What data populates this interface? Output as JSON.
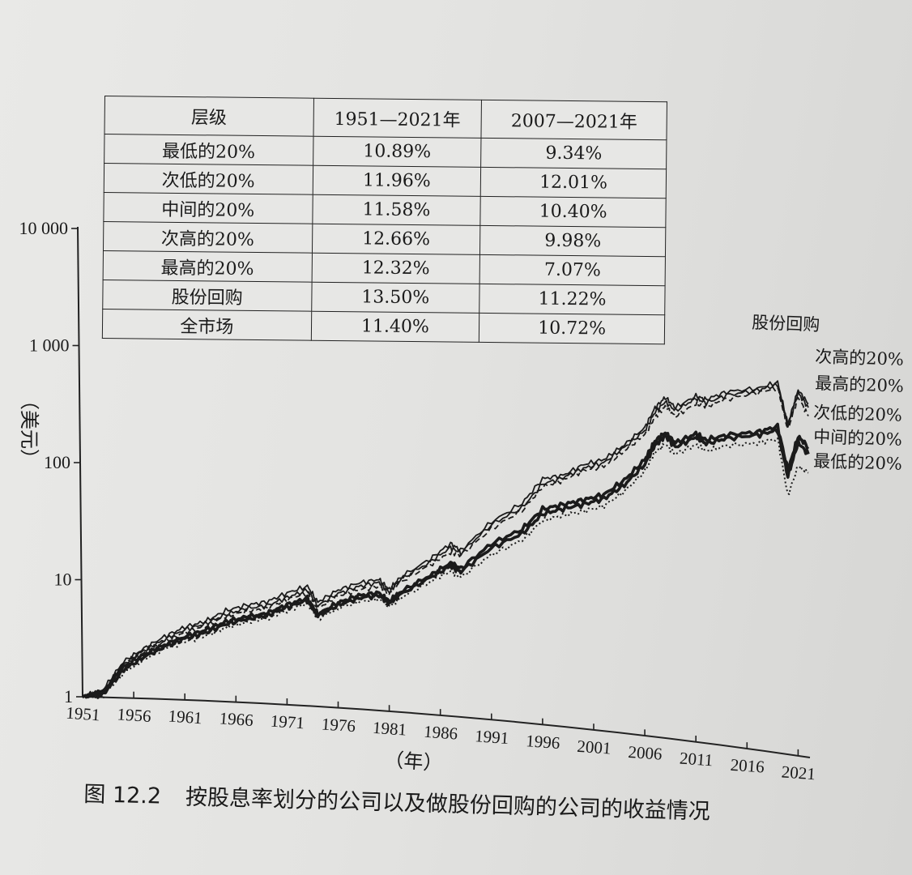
{
  "table": {
    "headers": [
      "层级",
      "1951—2021年",
      "2007—2021年"
    ],
    "rows": [
      [
        "最低的20%",
        "10.89%",
        "9.34%"
      ],
      [
        "次低的20%",
        "11.96%",
        "12.01%"
      ],
      [
        "中间的20%",
        "11.58%",
        "10.40%"
      ],
      [
        "次高的20%",
        "12.66%",
        "9.98%"
      ],
      [
        "最高的20%",
        "12.32%",
        "7.07%"
      ],
      [
        "股份回购",
        "13.50%",
        "11.22%"
      ],
      [
        "全市场",
        "11.40%",
        "10.72%"
      ]
    ]
  },
  "caption": {
    "figure_number": "图 12.2",
    "text": "按股息率划分的公司以及做股份回购的公司的收益情况"
  },
  "chart_data": {
    "type": "line",
    "ylabel": "（美元）",
    "xlabel": "（年）",
    "y_scale": "log",
    "ylim": [
      1,
      10000
    ],
    "xlim": [
      1951,
      2022
    ],
    "y_ticks": [
      1,
      10,
      100,
      1000,
      10000
    ],
    "y_tick_labels": [
      "1",
      "10",
      "100",
      "1 000",
      "10 000"
    ],
    "x_ticks": [
      1951,
      1956,
      1961,
      1966,
      1971,
      1976,
      1981,
      1986,
      1991,
      1996,
      2001,
      2006,
      2011,
      2016,
      2021
    ],
    "x_tick_labels": [
      "1951",
      "1956",
      "1961",
      "1966",
      "1971",
      "1976",
      "1981",
      "1986",
      "1991",
      "1996",
      "2001",
      "2006",
      "2011",
      "2016",
      "2021"
    ],
    "x": [
      1951,
      1953,
      1955,
      1957,
      1959,
      1961,
      1963,
      1965,
      1967,
      1969,
      1971,
      1973,
      1974,
      1976,
      1978,
      1980,
      1981,
      1982,
      1985,
      1987,
      1988,
      1991,
      1994,
      1996,
      1998,
      2000,
      2002,
      2004,
      2006,
      2007,
      2008,
      2009,
      2011,
      2012,
      2014,
      2017,
      2019,
      2020,
      2021,
      2022
    ],
    "series_labels_order": [
      "股份回购",
      "次高的20%",
      "最高的20%",
      "次低的20%",
      "中间的20%",
      "最低的20%"
    ],
    "series": [
      {
        "name": "股份回购",
        "style": "solid-thin",
        "values": [
          1,
          1.15,
          2.0,
          2.6,
          3.3,
          4.0,
          4.5,
          5.6,
          6.3,
          6.8,
          8.2,
          9.5,
          7.0,
          9.0,
          10.5,
          11.5,
          9.5,
          12.0,
          18.0,
          25.0,
          22.0,
          40.0,
          60.0,
          100.0,
          110.0,
          140.0,
          160.0,
          220.0,
          320.0,
          480.0,
          600.0,
          500.0,
          650.0,
          620.0,
          750.0,
          850.0,
          1000.0,
          450.0,
          900.0,
          700.0
        ]
      },
      {
        "name": "次高的20%",
        "style": "solid-thin",
        "values": [
          1,
          1.12,
          1.9,
          2.5,
          3.1,
          3.8,
          4.3,
          5.2,
          5.9,
          6.3,
          7.5,
          8.8,
          6.5,
          8.4,
          9.8,
          10.8,
          9.0,
          11.5,
          17.0,
          23.0,
          21.0,
          38.0,
          55.0,
          90.0,
          105.0,
          130.0,
          150.0,
          210.0,
          300.0,
          440.0,
          550.0,
          470.0,
          620.0,
          580.0,
          700.0,
          820.0,
          950.0,
          430.0,
          850.0,
          650.0
        ]
      },
      {
        "name": "最高的20%",
        "style": "dashed",
        "values": [
          1,
          1.1,
          1.85,
          2.4,
          3.0,
          3.6,
          4.1,
          5.0,
          5.6,
          6.0,
          7.2,
          8.4,
          6.2,
          8.0,
          9.2,
          10.0,
          8.7,
          11.0,
          16.0,
          21.0,
          20.0,
          35.0,
          52.0,
          85.0,
          100.0,
          125.0,
          140.0,
          195.0,
          280.0,
          400.0,
          500.0,
          420.0,
          560.0,
          540.0,
          650.0,
          780.0,
          900.0,
          400.0,
          780.0,
          550.0
        ]
      },
      {
        "name": "次低的20%",
        "style": "bold",
        "values": [
          1,
          1.08,
          1.8,
          2.3,
          2.8,
          3.3,
          3.8,
          4.5,
          5.0,
          5.4,
          6.5,
          7.5,
          5.5,
          7.0,
          8.2,
          8.8,
          7.5,
          9.0,
          13.0,
          17.0,
          15.5,
          26.0,
          36.0,
          55.0,
          62.0,
          70.0,
          80.0,
          110.0,
          170.0,
          250.0,
          300.0,
          250.0,
          310.0,
          280.0,
          320.0,
          360.0,
          420.0,
          180.0,
          360.0,
          300.0
        ]
      },
      {
        "name": "中间的20%",
        "style": "bold",
        "values": [
          1,
          1.05,
          1.7,
          2.2,
          2.7,
          3.2,
          3.6,
          4.3,
          4.8,
          5.2,
          6.2,
          7.2,
          5.3,
          6.7,
          7.8,
          8.4,
          7.2,
          8.6,
          12.5,
          16.0,
          14.5,
          24.0,
          33.0,
          50.0,
          57.0,
          64.0,
          74.0,
          100.0,
          155.0,
          230.0,
          280.0,
          230.0,
          290.0,
          260.0,
          300.0,
          340.0,
          390.0,
          160.0,
          320.0,
          260.0
        ]
      },
      {
        "name": "最低的20%",
        "style": "dotted",
        "values": [
          1,
          1.02,
          1.6,
          2.1,
          2.6,
          3.0,
          3.4,
          4.0,
          4.5,
          4.9,
          5.8,
          6.8,
          5.0,
          6.3,
          7.3,
          7.9,
          6.8,
          8.0,
          11.5,
          14.5,
          13.0,
          21.0,
          29.0,
          44.0,
          50.0,
          56.0,
          64.0,
          88.0,
          135.0,
          200.0,
          240.0,
          200.0,
          250.0,
          225.0,
          260.0,
          290.0,
          330.0,
          110.0,
          200.0,
          180.0
        ]
      }
    ]
  }
}
